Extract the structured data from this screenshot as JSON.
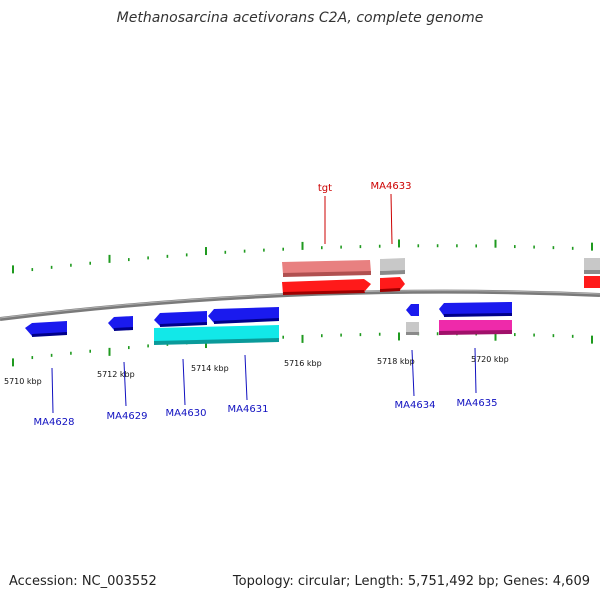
{
  "title": "Methanosarcina acetivorans C2A, complete genome",
  "footer": {
    "accession": "Accession: NC_003552",
    "summary": "Topology: circular; Length: 5,751,492 bp; Genes: 4,609"
  },
  "scale_labels": [
    "5710 kbp",
    "5712 kbp",
    "5714 kbp",
    "5716 kbp",
    "5718 kbp",
    "5720 kbp"
  ],
  "genes_forward": [
    {
      "label": "tgt",
      "color": "#cc0000"
    },
    {
      "label": "MA4633",
      "color": "#cc0000"
    }
  ],
  "genes_reverse": [
    {
      "label": "MA4628",
      "color": "#1010c0"
    },
    {
      "label": "MA4629",
      "color": "#1010c0"
    },
    {
      "label": "MA4630",
      "color": "#1010c0"
    },
    {
      "label": "MA4631",
      "color": "#1010c0"
    },
    {
      "label": "MA4634",
      "color": "#1010c0"
    },
    {
      "label": "MA4635",
      "color": "#1010c0"
    }
  ],
  "colors": {
    "forward_cds": "#ff1a1a",
    "forward_feature": "#e88080",
    "reverse_cds": "#1a1aee",
    "reverse_feature_cyan": "#12e8e8",
    "reverse_feature_magenta": "#ee2aaa",
    "other_feature": "#c8c8c8",
    "tick": "#1f9a1f",
    "backbone": "#808080"
  }
}
